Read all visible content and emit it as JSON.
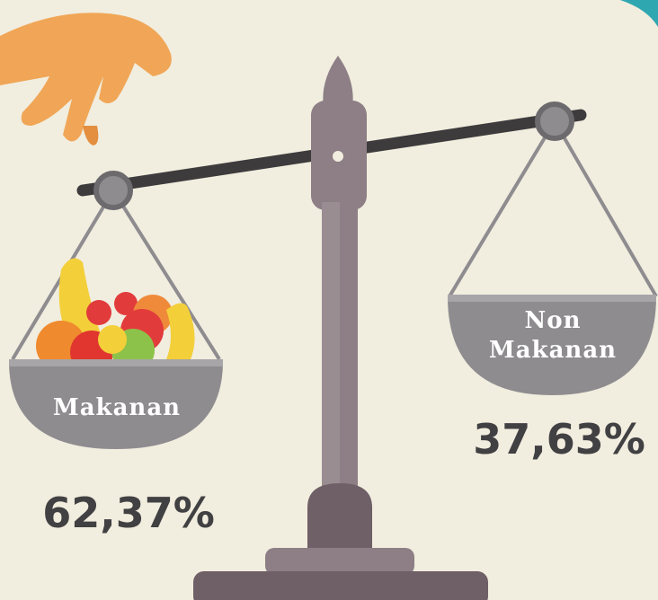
{
  "left_pan": {
    "label": "Makanan",
    "value": "62,37%"
  },
  "right_pan": {
    "label_lines": [
      "Non",
      "Makanan"
    ],
    "value": "37,63%"
  }
}
